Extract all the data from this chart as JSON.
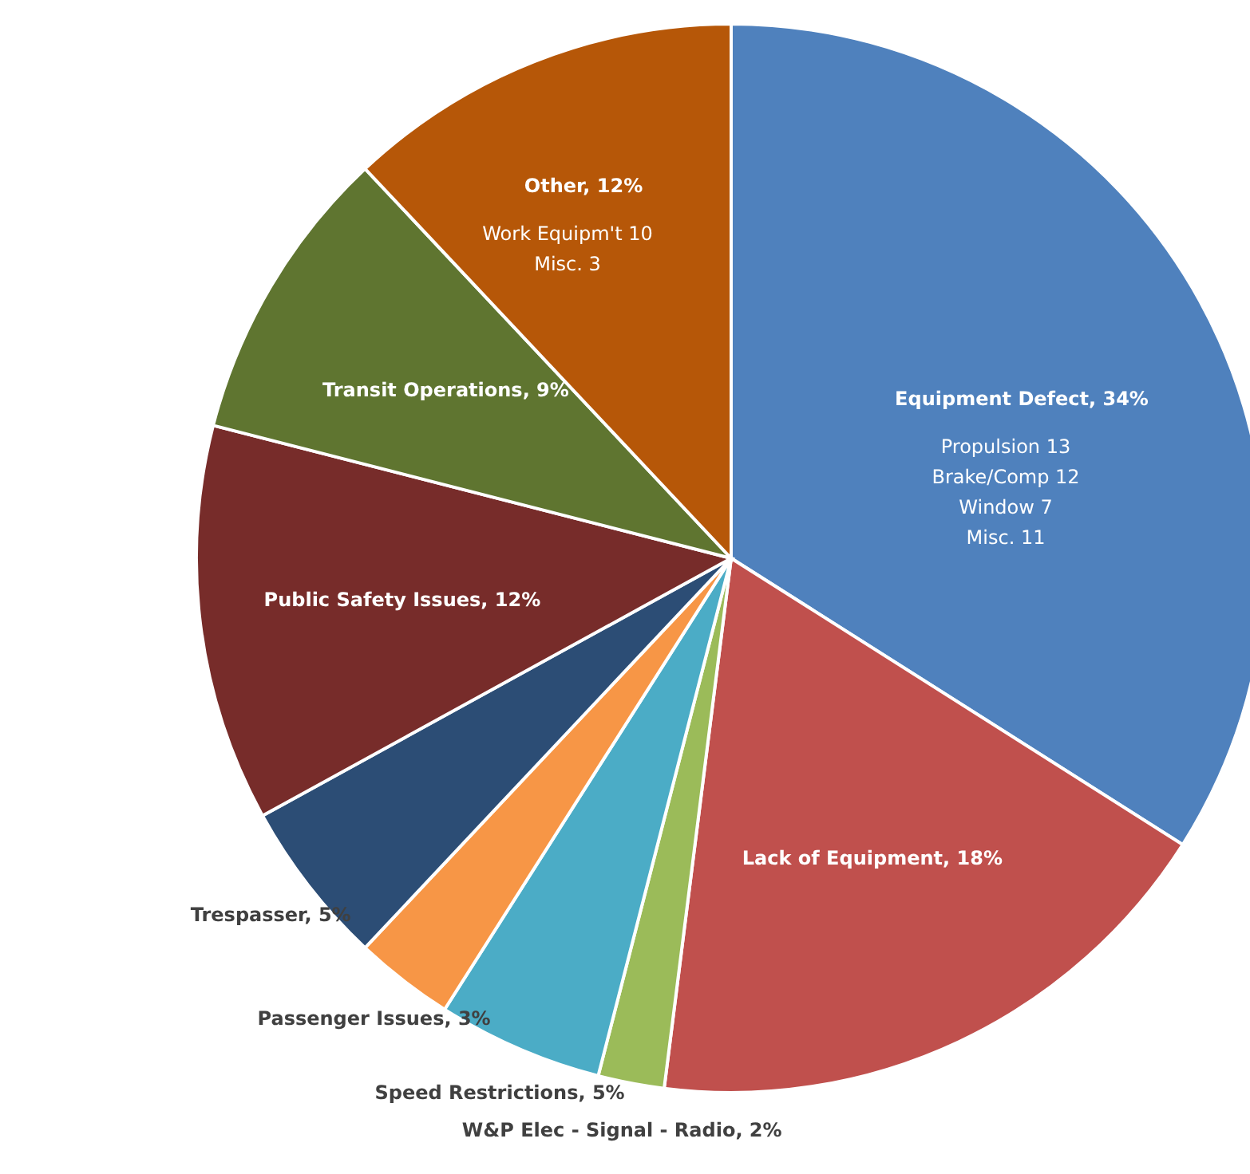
{
  "chart_data": {
    "type": "pie",
    "categories": [
      "Equipment Defect",
      "Lack of Equipment",
      "W&P Elec - Signal - Radio",
      "Speed Restrictions",
      "Passenger Issues",
      "Trespasser",
      "Public Safety Issues",
      "Transit Operations",
      "Other"
    ],
    "values": [
      34,
      18,
      2,
      5,
      3,
      5,
      12,
      9,
      12
    ],
    "colors": [
      "#4f81bd",
      "#c0504d",
      "#9bbb59",
      "#4bacc6",
      "#f79646",
      "#2c4d75",
      "#772c2a",
      "#5f7530",
      "#b65708"
    ],
    "value_labels": [
      "34%",
      "18%",
      "2%",
      "5%",
      "3%",
      "5%",
      "12%",
      "9%",
      "12%"
    ],
    "annotations": [
      "Work Equipm't  10",
      "Misc.  3",
      "Propulsion  13",
      "Brake/Comp  12",
      "Window  7",
      "Misc.  11"
    ]
  }
}
